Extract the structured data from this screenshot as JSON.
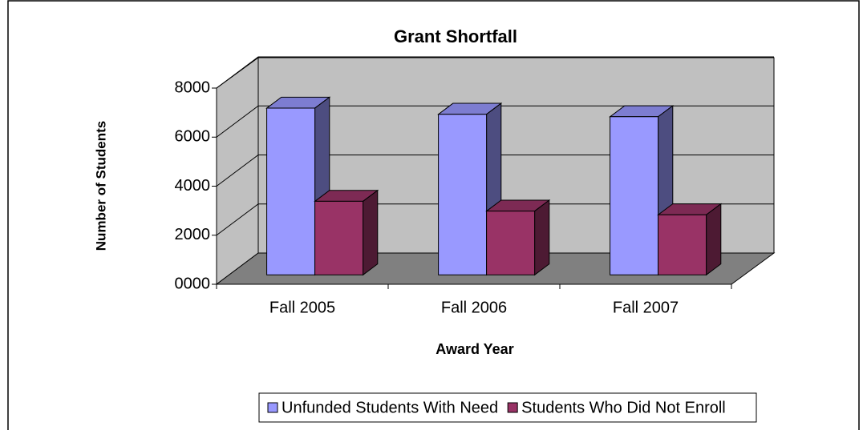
{
  "chart_data": {
    "type": "bar3d",
    "title": "Grant Shortfall",
    "x_label": "Award Year",
    "y_label": "Number of Students",
    "categories": [
      "Fall 2005",
      "Fall 2006",
      "Fall 2007"
    ],
    "series": [
      {
        "name": "Unfunded Students With Need",
        "color": "#9999ff",
        "values": [
          6800,
          6550,
          6450
        ]
      },
      {
        "name": "Students Who Did Not Enroll",
        "color": "#993366",
        "values": [
          3000,
          2600,
          2450
        ]
      }
    ],
    "ylim": [
      0,
      8000
    ],
    "yticks": [
      {
        "value": 0,
        "label": "0000"
      },
      2000,
      4000,
      6000,
      8000
    ],
    "grid": true,
    "legend": "bottom"
  }
}
